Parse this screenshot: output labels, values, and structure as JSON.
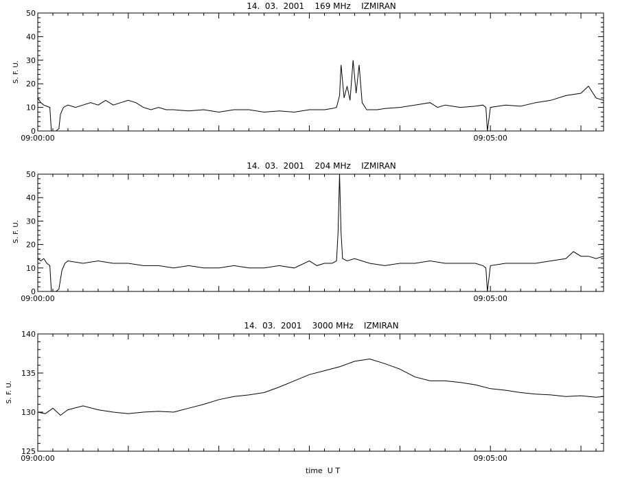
{
  "chart_data": [
    {
      "type": "line",
      "title": "14.  03.  2001    169 MHz    IZMIRAN",
      "ylabel": "S. F. U.",
      "xlabel": "",
      "xlim": [
        "09:00:00",
        "09:06:15"
      ],
      "ylim": [
        0,
        50
      ],
      "yticks": [
        "0",
        "10",
        "20",
        "30",
        "40",
        "50"
      ],
      "xtick_labels": [
        "09:00:00",
        "09:05:00"
      ],
      "grid": false,
      "series": [
        {
          "points": [
            [
              "09:00:00",
              14
            ],
            [
              "09:00:02",
              12
            ],
            [
              "09:00:04",
              11
            ],
            [
              "09:00:06",
              10.5
            ],
            [
              "09:00:08",
              10
            ],
            [
              "09:00:09",
              0
            ],
            [
              "09:00:12",
              0
            ],
            [
              "09:00:14",
              1
            ],
            [
              "09:00:15",
              7
            ],
            [
              "09:00:17",
              10
            ],
            [
              "09:00:20",
              11
            ],
            [
              "09:00:25",
              10
            ],
            [
              "09:00:30",
              11
            ],
            [
              "09:00:35",
              12
            ],
            [
              "09:00:40",
              11
            ],
            [
              "09:00:45",
              13
            ],
            [
              "09:00:50",
              11
            ],
            [
              "09:00:55",
              12
            ],
            [
              "09:01:00",
              13
            ],
            [
              "09:01:05",
              12
            ],
            [
              "09:01:10",
              10
            ],
            [
              "09:01:15",
              9
            ],
            [
              "09:01:20",
              10
            ],
            [
              "09:01:25",
              9
            ],
            [
              "09:01:30",
              9
            ],
            [
              "09:01:40",
              8.5
            ],
            [
              "09:01:50",
              9
            ],
            [
              "09:02:00",
              8
            ],
            [
              "09:02:10",
              9
            ],
            [
              "09:02:20",
              9
            ],
            [
              "09:02:30",
              8
            ],
            [
              "09:02:40",
              8.5
            ],
            [
              "09:02:50",
              8
            ],
            [
              "09:03:00",
              9
            ],
            [
              "09:03:10",
              9
            ],
            [
              "09:03:15",
              9.5
            ],
            [
              "09:03:18",
              10
            ],
            [
              "09:03:20",
              15
            ],
            [
              "09:03:21",
              28
            ],
            [
              "09:03:23",
              14
            ],
            [
              "09:03:25",
              19
            ],
            [
              "09:03:27",
              13
            ],
            [
              "09:03:29",
              30
            ],
            [
              "09:03:31",
              16
            ],
            [
              "09:03:33",
              28
            ],
            [
              "09:03:35",
              12
            ],
            [
              "09:03:38",
              9
            ],
            [
              "09:03:45",
              9
            ],
            [
              "09:03:50",
              9.5
            ],
            [
              "09:04:00",
              10
            ],
            [
              "09:04:10",
              11
            ],
            [
              "09:04:20",
              12
            ],
            [
              "09:04:25",
              10
            ],
            [
              "09:04:30",
              11
            ],
            [
              "09:04:40",
              10
            ],
            [
              "09:04:50",
              10.5
            ],
            [
              "09:04:55",
              11
            ],
            [
              "09:04:57",
              10
            ],
            [
              "09:04:58",
              0
            ],
            [
              "09:05:00",
              10
            ],
            [
              "09:05:10",
              11
            ],
            [
              "09:05:20",
              10.5
            ],
            [
              "09:05:30",
              12
            ],
            [
              "09:05:40",
              13
            ],
            [
              "09:05:50",
              15
            ],
            [
              "09:06:00",
              16
            ],
            [
              "09:06:05",
              19
            ],
            [
              "09:06:10",
              14
            ],
            [
              "09:06:15",
              13
            ]
          ]
        }
      ]
    },
    {
      "type": "line",
      "title": "14.  03.  2001    204 MHz    IZMIRAN",
      "ylabel": "S. F. U.",
      "xlabel": "",
      "xlim": [
        "09:00:00",
        "09:06:15"
      ],
      "ylim": [
        0,
        50
      ],
      "yticks": [
        "0",
        "10",
        "20",
        "30",
        "40",
        "50"
      ],
      "xtick_labels": [
        "09:00:00",
        "09:05:00"
      ],
      "grid": false,
      "series": [
        {
          "points": [
            [
              "09:00:00",
              14
            ],
            [
              "09:00:02",
              13
            ],
            [
              "09:00:04",
              14
            ],
            [
              "09:00:06",
              12
            ],
            [
              "09:00:08",
              11
            ],
            [
              "09:00:09",
              0
            ],
            [
              "09:00:12",
              0
            ],
            [
              "09:00:14",
              1
            ],
            [
              "09:00:16",
              9
            ],
            [
              "09:00:18",
              12
            ],
            [
              "09:00:20",
              13
            ],
            [
              "09:00:30",
              12
            ],
            [
              "09:00:40",
              13
            ],
            [
              "09:00:50",
              12
            ],
            [
              "09:01:00",
              12
            ],
            [
              "09:01:10",
              11
            ],
            [
              "09:01:20",
              11
            ],
            [
              "09:01:30",
              10
            ],
            [
              "09:01:40",
              11
            ],
            [
              "09:01:50",
              10
            ],
            [
              "09:02:00",
              10
            ],
            [
              "09:02:10",
              11
            ],
            [
              "09:02:20",
              10
            ],
            [
              "09:02:30",
              10
            ],
            [
              "09:02:40",
              11
            ],
            [
              "09:02:50",
              10
            ],
            [
              "09:03:00",
              13
            ],
            [
              "09:03:05",
              11
            ],
            [
              "09:03:10",
              12
            ],
            [
              "09:03:15",
              12
            ],
            [
              "09:03:18",
              13
            ],
            [
              "09:03:19",
              25
            ],
            [
              "09:03:20",
              50
            ],
            [
              "09:03:21",
              25
            ],
            [
              "09:03:22",
              14
            ],
            [
              "09:03:25",
              13
            ],
            [
              "09:03:30",
              14
            ],
            [
              "09:03:40",
              12
            ],
            [
              "09:03:50",
              11
            ],
            [
              "09:04:00",
              12
            ],
            [
              "09:04:10",
              12
            ],
            [
              "09:04:20",
              13
            ],
            [
              "09:04:30",
              12
            ],
            [
              "09:04:40",
              12
            ],
            [
              "09:04:50",
              12
            ],
            [
              "09:04:55",
              11
            ],
            [
              "09:04:57",
              10
            ],
            [
              "09:04:58",
              0
            ],
            [
              "09:05:00",
              11
            ],
            [
              "09:05:10",
              12
            ],
            [
              "09:05:20",
              12
            ],
            [
              "09:05:30",
              12
            ],
            [
              "09:05:40",
              13
            ],
            [
              "09:05:50",
              14
            ],
            [
              "09:05:55",
              17
            ],
            [
              "09:06:00",
              15
            ],
            [
              "09:06:05",
              15
            ],
            [
              "09:06:10",
              14
            ],
            [
              "09:06:15",
              15
            ]
          ]
        }
      ]
    },
    {
      "type": "line",
      "title": "14.  03.  2001    3000 MHz    IZMIRAN",
      "ylabel": "S. F. U.",
      "xlabel": "time  U T",
      "xlim": [
        "09:00:00",
        "09:06:15"
      ],
      "ylim": [
        125,
        140
      ],
      "yticks": [
        "125",
        "130",
        "135",
        "140"
      ],
      "xtick_labels": [
        "09:00:00",
        "09:05:00"
      ],
      "grid": false,
      "series": [
        {
          "points": [
            [
              "09:00:00",
              130
            ],
            [
              "09:00:05",
              129.8
            ],
            [
              "09:00:10",
              130.5
            ],
            [
              "09:00:15",
              129.6
            ],
            [
              "09:00:20",
              130.3
            ],
            [
              "09:00:30",
              130.8
            ],
            [
              "09:00:40",
              130.3
            ],
            [
              "09:00:50",
              130.0
            ],
            [
              "09:01:00",
              129.8
            ],
            [
              "09:01:10",
              130.0
            ],
            [
              "09:01:20",
              130.1
            ],
            [
              "09:01:30",
              130.0
            ],
            [
              "09:01:40",
              130.5
            ],
            [
              "09:01:50",
              131.0
            ],
            [
              "09:02:00",
              131.6
            ],
            [
              "09:02:10",
              132.0
            ],
            [
              "09:02:20",
              132.2
            ],
            [
              "09:02:30",
              132.5
            ],
            [
              "09:02:40",
              133.2
            ],
            [
              "09:02:50",
              134.0
            ],
            [
              "09:03:00",
              134.8
            ],
            [
              "09:03:10",
              135.3
            ],
            [
              "09:03:20",
              135.8
            ],
            [
              "09:03:30",
              136.5
            ],
            [
              "09:03:40",
              136.8
            ],
            [
              "09:03:50",
              136.2
            ],
            [
              "09:04:00",
              135.5
            ],
            [
              "09:04:10",
              134.5
            ],
            [
              "09:04:20",
              134.0
            ],
            [
              "09:04:30",
              134.0
            ],
            [
              "09:04:40",
              133.8
            ],
            [
              "09:04:50",
              133.5
            ],
            [
              "09:05:00",
              133.0
            ],
            [
              "09:05:10",
              132.8
            ],
            [
              "09:05:20",
              132.5
            ],
            [
              "09:05:30",
              132.3
            ],
            [
              "09:05:40",
              132.2
            ],
            [
              "09:05:50",
              132.0
            ],
            [
              "09:06:00",
              132.1
            ],
            [
              "09:06:10",
              131.9
            ],
            [
              "09:06:15",
              132.0
            ]
          ]
        }
      ]
    }
  ]
}
